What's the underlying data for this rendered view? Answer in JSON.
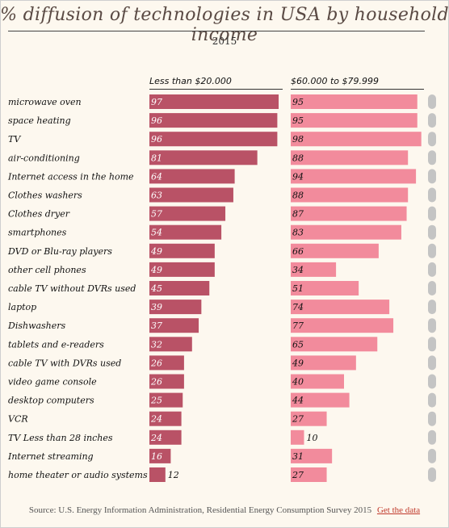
{
  "title": "% diffusion of technologies in USA by household income",
  "subtitle": "2015",
  "source": {
    "text": "Source: U.S. Energy Information Administration, Residential Energy Consumption Survey 2015",
    "link_label": "Get the data"
  },
  "colors": {
    "series1": "#b95266",
    "series2": "#f28b9c",
    "scroll_track": "#c4c4c4",
    "source_link": "#c0392b"
  },
  "chart_data": {
    "type": "bar",
    "orientation": "horizontal",
    "categories": [
      "microwave oven",
      "space heating",
      "TV",
      "air-conditioning",
      "Internet access in the home",
      "Clothes washers",
      "Clothes dryer",
      "smartphones",
      "DVD or Blu-ray players",
      "other cell phones",
      "cable TV without DVRs used",
      "laptop",
      "Dishwashers",
      "tablets and e-readers",
      "cable TV with DVRs used",
      "video game console",
      "desktop computers",
      "VCR",
      "TV Less than 28 inches",
      "Internet streaming",
      "home theater or audio systems"
    ],
    "series": [
      {
        "name": "Less than $20.000",
        "values": [
          97,
          96,
          96,
          81,
          64,
          63,
          57,
          54,
          49,
          49,
          45,
          39,
          37,
          32,
          26,
          26,
          25,
          24,
          24,
          16,
          12
        ]
      },
      {
        "name": "$60.000 to $79.999",
        "values": [
          95,
          95,
          98,
          88,
          94,
          88,
          87,
          83,
          66,
          34,
          51,
          74,
          77,
          65,
          49,
          40,
          44,
          27,
          10,
          31,
          27
        ]
      }
    ],
    "xlim": [
      0,
      100
    ],
    "data_labels": true,
    "grid": false,
    "legend": "column headers above bars"
  }
}
